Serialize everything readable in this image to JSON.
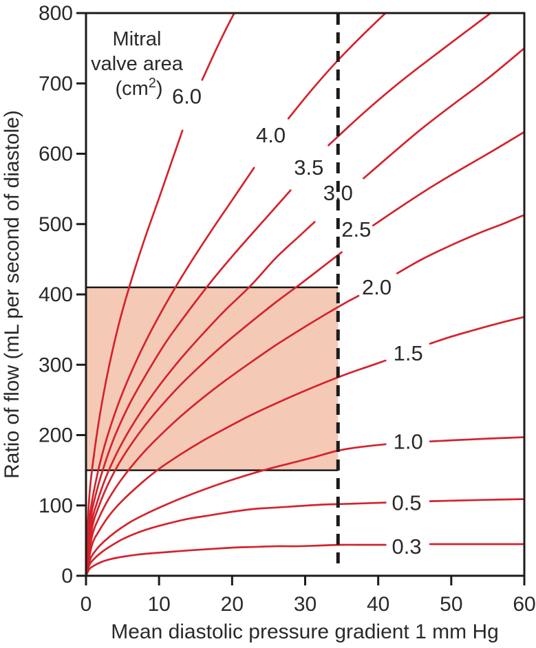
{
  "figure": {
    "annotation": {
      "line1": "Mitral",
      "line2": "valve area",
      "unit_prefix": "(cm",
      "unit_sup": "2",
      "unit_suffix": ")"
    }
  },
  "chart_data": {
    "type": "line",
    "title": "Mitral valve area (cm2)",
    "xlabel": "Mean diastolic pressure gradient 1 mm Hg",
    "ylabel": "Ratio of flow (mL per second of diastole)",
    "xlim": [
      0,
      60
    ],
    "ylim": [
      0,
      800
    ],
    "xticks": [
      0,
      10,
      20,
      30,
      40,
      50,
      60
    ],
    "yticks": [
      0,
      100,
      200,
      300,
      400,
      500,
      600,
      700,
      800
    ],
    "grid": false,
    "legend_position": "labels-on-curves",
    "dashed_vline_x": 34.5,
    "shaded_region": {
      "x0": 0,
      "x1": 34.5,
      "y0": 150,
      "y1": 410
    },
    "colors": {
      "curve": "#d4222b",
      "axis": "#1d1b1a",
      "text": "#2b2928",
      "shade_fill": "#f4c9b6"
    },
    "series": [
      {
        "name": "6.0",
        "label_x": 13.8,
        "label_y": 681,
        "segments": [
          [
            [
              0,
              0
            ],
            [
              0.4,
              105
            ],
            [
              1,
              165
            ],
            [
              2,
              235
            ],
            [
              3.2,
              300
            ],
            [
              4.6,
              362
            ],
            [
              6.2,
              420
            ],
            [
              8,
              478
            ],
            [
              10,
              537
            ],
            [
              11.6,
              585
            ],
            [
              13.2,
              633
            ]
          ],
          [
            [
              15.9,
              705
            ],
            [
              17.8,
              748
            ],
            [
              19.2,
              778
            ],
            [
              20.3,
              800
            ]
          ]
        ]
      },
      {
        "name": "4.0",
        "label_x": 25.3,
        "label_y": 626,
        "segments": [
          [
            [
              0,
              0
            ],
            [
              0.5,
              82
            ],
            [
              1.2,
              127
            ],
            [
              2.2,
              172
            ],
            [
              3.5,
              217
            ],
            [
              5,
              260
            ],
            [
              7,
              308
            ],
            [
              9,
              350
            ],
            [
              11.5,
              397
            ],
            [
              14,
              440
            ],
            [
              17,
              488
            ],
            [
              20,
              534
            ],
            [
              23,
              580
            ]
          ],
          [
            [
              27.7,
              650
            ],
            [
              31,
              692
            ],
            [
              34.5,
              733
            ],
            [
              38,
              770
            ],
            [
              41,
              800
            ]
          ]
        ]
      },
      {
        "name": "3.5",
        "label_x": 30.5,
        "label_y": 580,
        "segments": [
          [
            [
              0,
              0
            ],
            [
              0.6,
              77
            ],
            [
              1.4,
              118
            ],
            [
              2.6,
              160
            ],
            [
              4,
              200
            ],
            [
              6,
              245
            ],
            [
              8.5,
              291
            ],
            [
              11,
              333
            ],
            [
              14,
              376
            ],
            [
              17.5,
              423
            ],
            [
              21,
              466
            ],
            [
              24.5,
              507
            ],
            [
              28,
              548
            ]
          ],
          [
            [
              33.2,
              612
            ],
            [
              38,
              658
            ],
            [
              43,
              702
            ],
            [
              49,
              750
            ],
            [
              55.4,
              800
            ]
          ]
        ]
      },
      {
        "name": "3.0",
        "label_x": 34.5,
        "label_y": 544,
        "segments": [
          [
            [
              0,
              0
            ],
            [
              0.7,
              71
            ],
            [
              1.6,
              107
            ],
            [
              3,
              147
            ],
            [
              5,
              190
            ],
            [
              7.5,
              233
            ],
            [
              10,
              270
            ],
            [
              13,
              309
            ],
            [
              16,
              344
            ],
            [
              19,
              377
            ],
            [
              22.5,
              412
            ],
            [
              26,
              452
            ],
            [
              29,
              481
            ],
            [
              31.3,
              503
            ]
          ],
          [
            [
              38,
              565
            ],
            [
              42,
              601
            ],
            [
              46,
              636
            ],
            [
              50,
              668
            ],
            [
              55,
              707
            ],
            [
              60,
              750
            ]
          ]
        ]
      },
      {
        "name": "2.5",
        "label_x": 37.0,
        "label_y": 492,
        "segments": [
          [
            [
              0,
              0
            ],
            [
              0.8,
              66
            ],
            [
              1.8,
              100
            ],
            [
              3.2,
              134
            ],
            [
              5,
              168
            ],
            [
              7.5,
              206
            ],
            [
              10,
              238
            ],
            [
              13,
              272
            ],
            [
              16,
              302
            ],
            [
              19,
              330
            ],
            [
              22.5,
              360
            ],
            [
              26,
              389
            ],
            [
              29.5,
              416
            ],
            [
              32.5,
              440
            ],
            [
              35,
              460
            ]
          ],
          [
            [
              39.3,
              498
            ],
            [
              43,
              524
            ],
            [
              47,
              551
            ],
            [
              51,
              576
            ],
            [
              55.5,
              603
            ],
            [
              60,
              631
            ]
          ]
        ]
      },
      {
        "name": "2.0",
        "label_x": 39.8,
        "label_y": 410,
        "segments": [
          [
            [
              0,
              0
            ],
            [
              0.8,
              55
            ],
            [
              1.8,
              83
            ],
            [
              3.2,
              111
            ],
            [
              5,
              139
            ],
            [
              7.5,
              171
            ],
            [
              10,
              198
            ],
            [
              13,
              227
            ],
            [
              16,
              253
            ],
            [
              19,
              277
            ],
            [
              22.5,
              303
            ],
            [
              26,
              328
            ],
            [
              29.5,
              351
            ],
            [
              33,
              373
            ],
            [
              35.5,
              388
            ],
            [
              37.3,
              398
            ]
          ],
          [
            [
              42.6,
              430
            ],
            [
              46,
              450
            ],
            [
              50,
              470
            ],
            [
              54,
              488
            ],
            [
              57,
              500
            ],
            [
              60,
              513
            ]
          ]
        ]
      },
      {
        "name": "1.5",
        "label_x": 44.1,
        "label_y": 316,
        "segments": [
          [
            [
              0,
              0
            ],
            [
              0.8,
              43
            ],
            [
              1.8,
              64
            ],
            [
              3.2,
              86
            ],
            [
              5,
              107
            ],
            [
              7.5,
              131
            ],
            [
              10,
              152
            ],
            [
              13,
              173
            ],
            [
              16,
              192
            ],
            [
              19,
              209
            ],
            [
              22.5,
              228
            ],
            [
              26,
              245
            ],
            [
              29.5,
              261
            ],
            [
              33,
              276
            ],
            [
              36,
              288
            ],
            [
              38.5,
              297
            ],
            [
              41,
              306
            ]
          ],
          [
            [
              47.1,
              330
            ],
            [
              50,
              340
            ],
            [
              53,
              349
            ],
            [
              56.5,
              359
            ],
            [
              60,
              368
            ]
          ]
        ]
      },
      {
        "name": "1.0",
        "label_x": 44.1,
        "label_y": 190,
        "segments": [
          [
            [
              0,
              0
            ],
            [
              0.6,
              24
            ],
            [
              1.4,
              37
            ],
            [
              2.5,
              49
            ],
            [
              4,
              62
            ],
            [
              6,
              76
            ],
            [
              8,
              87
            ],
            [
              10.5,
              99
            ],
            [
              13,
              110
            ],
            [
              16,
              122
            ],
            [
              19,
              133
            ],
            [
              22,
              143
            ],
            [
              25,
              152
            ],
            [
              28,
              160
            ],
            [
              31,
              168
            ],
            [
              34.5,
              178
            ],
            [
              37.5,
              183
            ],
            [
              41,
              187
            ]
          ],
          [
            [
              47.1,
              191
            ],
            [
              51,
              193
            ],
            [
              55,
              195
            ],
            [
              60,
              197
            ]
          ]
        ]
      },
      {
        "name": "0.5",
        "label_x": 43.9,
        "label_y": 103,
        "segments": [
          [
            [
              0,
              0
            ],
            [
              0.5,
              16
            ],
            [
              1.2,
              25
            ],
            [
              2.2,
              34
            ],
            [
              3.5,
              43
            ],
            [
              5,
              52
            ],
            [
              7,
              61
            ],
            [
              9,
              68
            ],
            [
              11.5,
              75
            ],
            [
              14,
              81
            ],
            [
              17,
              86
            ],
            [
              20,
              91
            ],
            [
              23,
              95
            ],
            [
              26,
              97
            ],
            [
              29,
              99
            ],
            [
              32,
              101
            ],
            [
              35,
              102
            ],
            [
              38,
              103
            ],
            [
              41,
              104
            ]
          ],
          [
            [
              47.1,
              106
            ],
            [
              51,
              107
            ],
            [
              55,
              108
            ],
            [
              60,
              109
            ]
          ]
        ]
      },
      {
        "name": "0.3",
        "label_x": 43.9,
        "label_y": 41,
        "segments": [
          [
            [
              0,
              0
            ],
            [
              0.5,
              10
            ],
            [
              1.2,
              15
            ],
            [
              2.2,
              20
            ],
            [
              3.5,
              24
            ],
            [
              5,
              27
            ],
            [
              7,
              30
            ],
            [
              9,
              32
            ],
            [
              11.5,
              34
            ],
            [
              14,
              36
            ],
            [
              17,
              38
            ],
            [
              20,
              40
            ],
            [
              23,
              41
            ],
            [
              26,
              42
            ],
            [
              29,
              42
            ],
            [
              32,
              43
            ],
            [
              35,
              44
            ],
            [
              38,
              44
            ],
            [
              41,
              44
            ]
          ],
          [
            [
              47.1,
              45
            ],
            [
              51,
              45
            ],
            [
              55,
              45
            ],
            [
              60,
              45
            ]
          ]
        ]
      }
    ]
  }
}
